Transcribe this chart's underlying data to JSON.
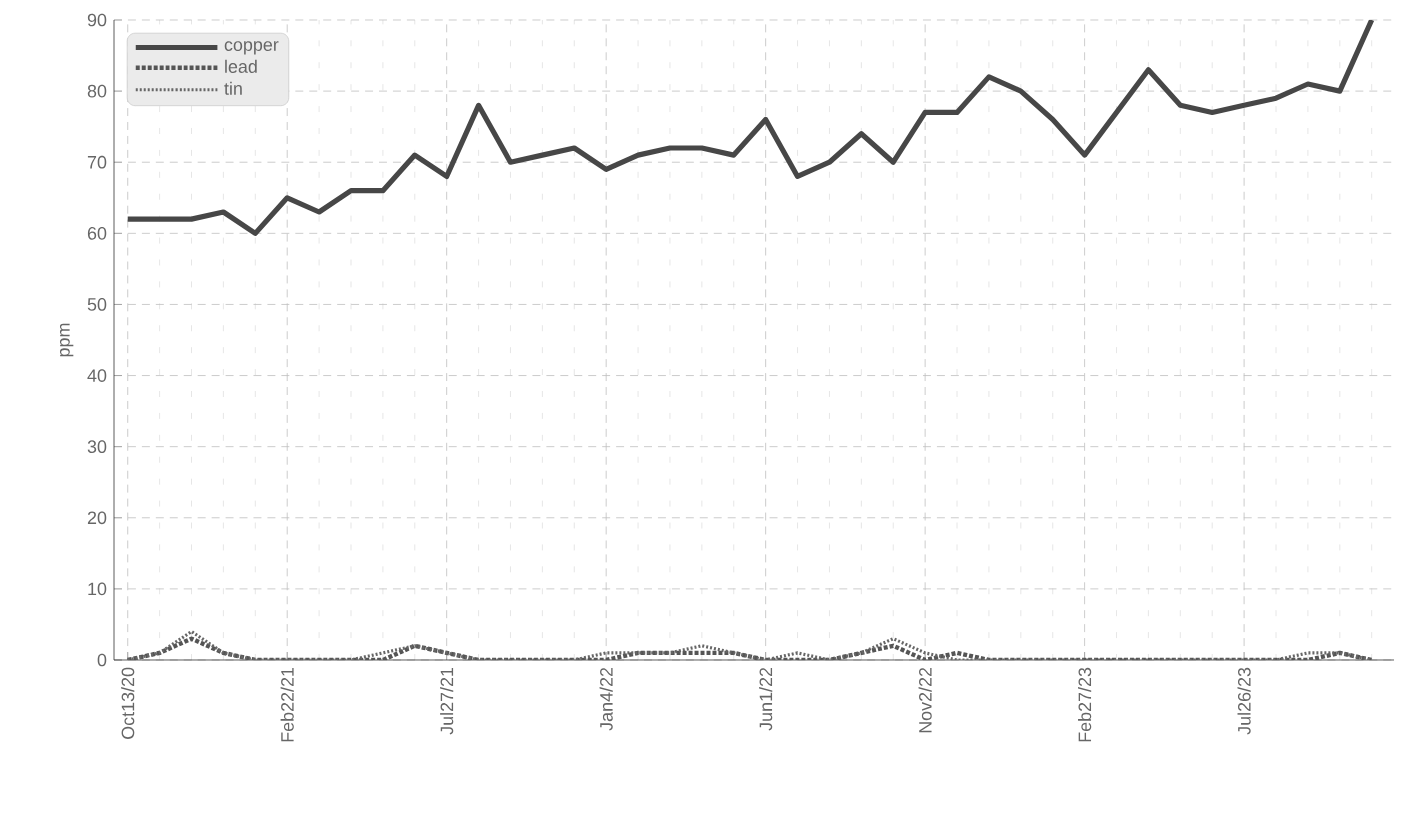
{
  "chart_data": {
    "type": "line",
    "ylabel": "ppm",
    "categories": [
      "Oct13/20",
      null,
      null,
      null,
      null,
      "Feb22/21",
      null,
      null,
      null,
      null,
      "Jul27/21",
      null,
      null,
      null,
      null,
      "Jan4/22",
      null,
      null,
      null,
      null,
      "Jun1/22",
      null,
      null,
      null,
      null,
      "Nov2/22",
      null,
      null,
      null,
      null,
      "Feb27/23",
      null,
      null,
      null,
      null,
      "Jul26/23",
      null,
      null,
      null,
      null
    ],
    "series": [
      {
        "name": "copper",
        "color": "#474747",
        "line_style": "solid",
        "values": [
          62,
          62,
          62,
          63,
          60,
          65,
          63,
          66,
          66,
          71,
          68,
          78,
          70,
          71,
          72,
          69,
          71,
          72,
          72,
          71,
          76,
          68,
          70,
          74,
          70,
          77,
          77,
          82,
          80,
          76,
          71,
          77,
          83,
          78,
          77,
          78,
          79,
          81,
          80,
          90
        ]
      },
      {
        "name": "lead",
        "color": "#555555",
        "line_style": "dashed",
        "values": [
          0,
          1,
          3,
          1,
          0,
          0,
          0,
          0,
          0,
          2,
          1,
          0,
          0,
          0,
          0,
          0,
          1,
          1,
          1,
          1,
          0,
          0,
          0,
          1,
          2,
          0,
          1,
          0,
          0,
          0,
          0,
          0,
          0,
          0,
          0,
          0,
          0,
          0,
          1,
          0
        ]
      },
      {
        "name": "tin",
        "color": "#666666",
        "line_style": "dotted",
        "values": [
          0,
          1,
          4,
          1,
          0,
          0,
          0,
          0,
          1,
          2,
          1,
          0,
          0,
          0,
          0,
          1,
          1,
          1,
          2,
          1,
          0,
          1,
          0,
          1,
          3,
          1,
          0,
          0,
          0,
          0,
          0,
          0,
          0,
          0,
          0,
          0,
          0,
          1,
          1,
          0
        ]
      }
    ],
    "ylim": [
      0,
      90
    ],
    "yticks": [
      0,
      10,
      20,
      30,
      40,
      50,
      60,
      70,
      80,
      90
    ],
    "grid": true,
    "legend": "top left",
    "marker": "none"
  }
}
